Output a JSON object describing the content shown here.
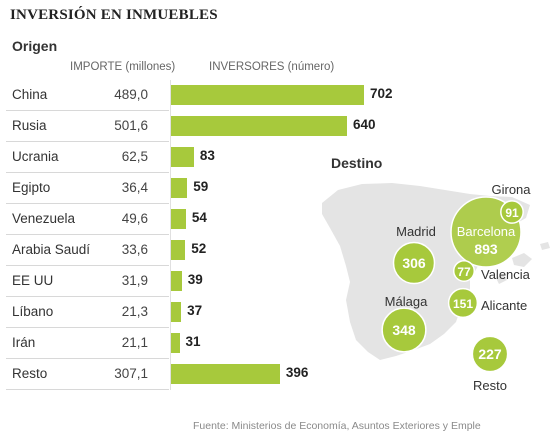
{
  "title": "INVERSIÓN EN INMUEBLES",
  "origin_label": "Origen",
  "columns": {
    "importe": "IMPORTE (millones)",
    "inversores": "INVERSORES (número)"
  },
  "chart_data": {
    "type": "bar",
    "title": "INVERSIÓN EN INMUEBLES",
    "categories": [
      "China",
      "Rusia",
      "Ucrania",
      "Egipto",
      "Venezuela",
      "Arabia Saudí",
      "EE UU",
      "Líbano",
      "Irán",
      "Resto"
    ],
    "importe_labels": [
      "489,0",
      "501,6",
      "62,5",
      "36,4",
      "49,6",
      "33,6",
      "31,9",
      "21,3",
      "21,1",
      "307,1"
    ],
    "series": [
      {
        "name": "INVERSORES (número)",
        "values": [
          702,
          640,
          83,
          59,
          54,
          52,
          39,
          37,
          31,
          396
        ]
      }
    ],
    "colors": {
      "bar": "#a7c93c",
      "bubble": "#a7c93c",
      "map": "#e4e4e4"
    }
  },
  "destino": {
    "title": "Destino",
    "cities": [
      {
        "name": "Girona",
        "value": 91
      },
      {
        "name": "Barcelona",
        "value": 893
      },
      {
        "name": "Madrid",
        "value": 306
      },
      {
        "name": "Valencia",
        "value": 77
      },
      {
        "name": "Alicante",
        "value": 151
      },
      {
        "name": "Málaga",
        "value": 348
      },
      {
        "name": "Resto",
        "value": 227
      }
    ]
  },
  "source": "Fuente: Ministerios de Economía, Asuntos Exteriores y Emple"
}
